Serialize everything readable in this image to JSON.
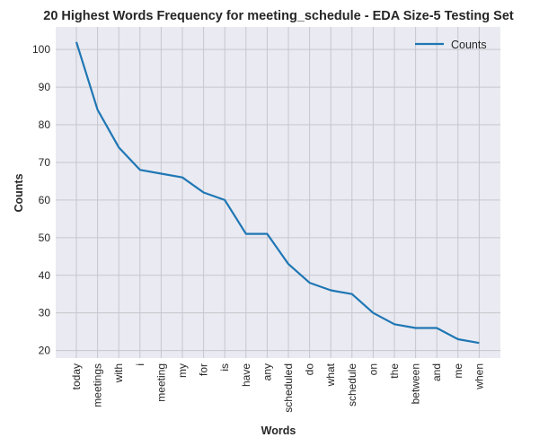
{
  "chart_data": {
    "type": "line",
    "title": "20 Highest Words Frequency for meeting_schedule - EDA Size-5 Testing Set",
    "xlabel": "Words",
    "ylabel": "Counts",
    "categories": [
      "today",
      "meetings",
      "with",
      "i",
      "meeting",
      "my",
      "for",
      "is",
      "have",
      "any",
      "scheduled",
      "do",
      "what",
      "schedule",
      "on",
      "the",
      "between",
      "and",
      "me",
      "when"
    ],
    "series": [
      {
        "name": "Counts",
        "values": [
          102,
          84,
          74,
          68,
          67,
          66,
          62,
          60,
          51,
          51,
          43,
          38,
          36,
          35,
          30,
          27,
          26,
          26,
          23,
          22
        ]
      }
    ],
    "ylim": [
      18,
      106
    ],
    "yticks": [
      20,
      30,
      40,
      50,
      60,
      70,
      80,
      90,
      100
    ],
    "grid": true,
    "legend_position": "top-right",
    "colors": {
      "line": "#1f77b4",
      "plot_bg": "#eaeaf2",
      "grid": "#c6c6cc"
    }
  }
}
